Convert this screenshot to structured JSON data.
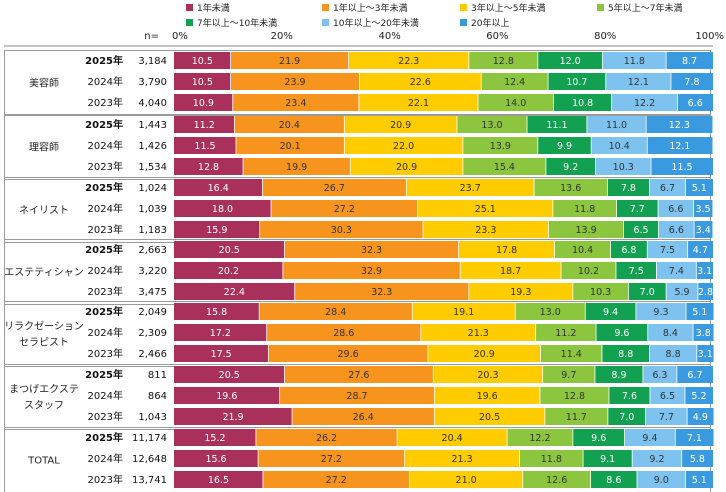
{
  "chart_data": {
    "type": "bar",
    "orientation": "horizontal",
    "stacked": true,
    "xlim": [
      0,
      100
    ],
    "n_label": "n=",
    "ticks": [
      0,
      20,
      40,
      60,
      80,
      100
    ],
    "tick_labels": [
      "0%",
      "20%",
      "40%",
      "60%",
      "80%",
      "100%"
    ],
    "legend_position": "top",
    "series": [
      {
        "name": "1年未満",
        "color": "#a8305a"
      },
      {
        "name": "1年以上～3年未満",
        "color": "#f7941d"
      },
      {
        "name": "3年以上～5年未満",
        "color": "#ffcc00"
      },
      {
        "name": "5年以上～7年未満",
        "color": "#8cc63f"
      },
      {
        "name": "7年以上～10年未満",
        "color": "#12a150"
      },
      {
        "name": "10年以上～20年未満",
        "color": "#7ec3f0"
      },
      {
        "name": "20年以上",
        "color": "#3a9ae0"
      }
    ],
    "groups": [
      {
        "name": [
          "美容師"
        ],
        "rows": [
          {
            "year": "2025年",
            "n": "3,184",
            "values": [
              10.5,
              21.9,
              22.3,
              12.8,
              12.0,
              11.8,
              8.7
            ]
          },
          {
            "year": "2024年",
            "n": "3,790",
            "values": [
              10.5,
              23.9,
              22.6,
              12.4,
              10.7,
              12.1,
              7.8
            ]
          },
          {
            "year": "2023年",
            "n": "4,040",
            "values": [
              10.9,
              23.4,
              22.1,
              14.0,
              10.8,
              12.2,
              6.6
            ]
          }
        ]
      },
      {
        "name": [
          "理容師"
        ],
        "rows": [
          {
            "year": "2025年",
            "n": "1,443",
            "values": [
              11.2,
              20.4,
              20.9,
              13.0,
              11.1,
              11.0,
              12.3
            ]
          },
          {
            "year": "2024年",
            "n": "1,426",
            "values": [
              11.5,
              20.1,
              22.0,
              13.9,
              9.9,
              10.4,
              12.1
            ]
          },
          {
            "year": "2023年",
            "n": "1,534",
            "values": [
              12.8,
              19.9,
              20.9,
              15.4,
              9.2,
              10.3,
              11.5
            ]
          }
        ]
      },
      {
        "name": [
          "ネイリスト"
        ],
        "rows": [
          {
            "year": "2025年",
            "n": "1,024",
            "values": [
              16.4,
              26.7,
              23.7,
              13.6,
              7.8,
              6.7,
              5.1
            ]
          },
          {
            "year": "2024年",
            "n": "1,039",
            "values": [
              18.0,
              27.2,
              25.1,
              11.8,
              7.7,
              6.6,
              3.5
            ]
          },
          {
            "year": "2023年",
            "n": "1,183",
            "values": [
              15.9,
              30.3,
              23.3,
              13.9,
              6.5,
              6.6,
              3.4
            ]
          }
        ]
      },
      {
        "name": [
          "エステティシャン"
        ],
        "rows": [
          {
            "year": "2025年",
            "n": "2,663",
            "values": [
              20.5,
              32.3,
              17.8,
              10.4,
              6.8,
              7.5,
              4.7
            ]
          },
          {
            "year": "2024年",
            "n": "3,220",
            "values": [
              20.2,
              32.9,
              18.7,
              10.2,
              7.5,
              7.4,
              3.1
            ]
          },
          {
            "year": "2023年",
            "n": "3,475",
            "values": [
              22.4,
              32.3,
              19.3,
              10.3,
              7.0,
              5.9,
              2.8
            ]
          }
        ]
      },
      {
        "name": [
          "リラクゼーション",
          "セラピスト"
        ],
        "rows": [
          {
            "year": "2025年",
            "n": "2,049",
            "values": [
              15.8,
              28.4,
              19.1,
              13.0,
              9.4,
              9.3,
              5.1
            ]
          },
          {
            "year": "2024年",
            "n": "2,309",
            "values": [
              17.2,
              28.6,
              21.3,
              11.2,
              9.6,
              8.4,
              3.8
            ]
          },
          {
            "year": "2023年",
            "n": "2,466",
            "values": [
              17.5,
              29.6,
              20.9,
              11.4,
              8.8,
              8.8,
              3.1
            ]
          }
        ]
      },
      {
        "name": [
          "まつげエクステ",
          "スタッフ"
        ],
        "rows": [
          {
            "year": "2025年",
            "n": "811",
            "values": [
              20.5,
              27.6,
              20.3,
              9.7,
              8.9,
              6.3,
              6.7
            ]
          },
          {
            "year": "2024年",
            "n": "864",
            "values": [
              19.6,
              28.7,
              19.6,
              12.8,
              7.6,
              6.5,
              5.2
            ]
          },
          {
            "year": "2023年",
            "n": "1,043",
            "values": [
              21.9,
              26.4,
              20.5,
              11.7,
              7.0,
              7.7,
              4.9
            ]
          }
        ]
      },
      {
        "name": [
          "TOTAL"
        ],
        "rows": [
          {
            "year": "2025年",
            "n": "11,174",
            "values": [
              15.2,
              26.2,
              20.4,
              12.2,
              9.6,
              9.4,
              7.1
            ]
          },
          {
            "year": "2024年",
            "n": "12,648",
            "values": [
              15.6,
              27.2,
              21.3,
              11.8,
              9.1,
              9.2,
              5.8
            ]
          },
          {
            "year": "2023年",
            "n": "13,741",
            "values": [
              16.5,
              27.2,
              21.0,
              12.6,
              8.6,
              9.0,
              5.1
            ]
          }
        ]
      }
    ]
  }
}
